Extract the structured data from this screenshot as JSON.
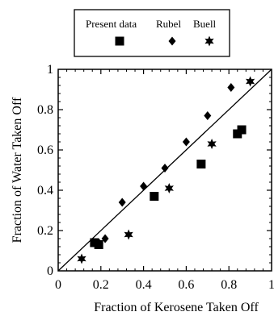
{
  "chart_data": {
    "type": "scatter",
    "xlabel": "Fraction of Kerosene Taken Off",
    "ylabel": "Fraction of Water Taken Off",
    "xlim": [
      0,
      1
    ],
    "ylim": [
      0,
      1
    ],
    "xticks": [
      "0",
      "0.2",
      "0.4",
      "0.6",
      "0.8",
      "1"
    ],
    "yticks": [
      "0",
      "0.2",
      "0.4",
      "0.6",
      "0.8",
      "1"
    ],
    "grid": false,
    "legend_position": "top",
    "reference_line": {
      "from": [
        0,
        0
      ],
      "to": [
        1,
        1
      ]
    },
    "series": [
      {
        "name": "Present data",
        "marker": "square",
        "points": [
          [
            0.17,
            0.14
          ],
          [
            0.19,
            0.13
          ],
          [
            0.45,
            0.37
          ],
          [
            0.67,
            0.53
          ],
          [
            0.84,
            0.68
          ],
          [
            0.86,
            0.7
          ]
        ]
      },
      {
        "name": "Rubel",
        "marker": "diamond",
        "points": [
          [
            0.19,
            0.14
          ],
          [
            0.22,
            0.16
          ],
          [
            0.3,
            0.34
          ],
          [
            0.4,
            0.42
          ],
          [
            0.5,
            0.51
          ],
          [
            0.6,
            0.64
          ],
          [
            0.7,
            0.77
          ],
          [
            0.81,
            0.91
          ]
        ]
      },
      {
        "name": "Buell",
        "marker": "star",
        "points": [
          [
            0.11,
            0.06
          ],
          [
            0.33,
            0.18
          ],
          [
            0.52,
            0.41
          ],
          [
            0.72,
            0.63
          ],
          [
            0.9,
            0.94
          ]
        ]
      }
    ]
  }
}
